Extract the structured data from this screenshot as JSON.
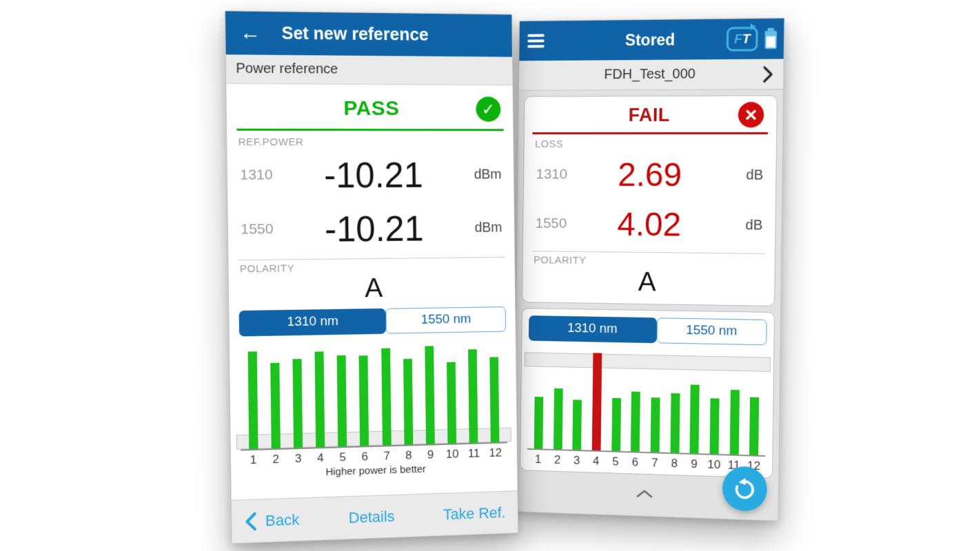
{
  "colors": {
    "header_blue": "#1063a7",
    "accent_light_blue": "#29abe2",
    "pass_green": "#0db10d",
    "bar_green": "#1ec21e",
    "fail_red": "#b20e0e",
    "value_red": "#c30505",
    "bar_red": "#c41212"
  },
  "icons": {
    "back_arrow": "←",
    "check": "✓",
    "fail_cross": "×"
  },
  "left_screen": {
    "header": {
      "title": "Set new reference"
    },
    "subheader": "Power reference",
    "status": "PASS",
    "section_label": "REF.POWER",
    "rows": [
      {
        "wavelength": "1310",
        "value": "-10.21",
        "unit": "dBm"
      },
      {
        "wavelength": "1550",
        "value": "-10.21",
        "unit": "dBm"
      }
    ],
    "polarity_label": "POLARITY",
    "polarity_value": "A",
    "tabs": [
      {
        "label": "1310 nm",
        "active": true
      },
      {
        "label": "1550 nm",
        "active": false
      }
    ],
    "footer": {
      "back": "Back",
      "details": "Details",
      "take_ref": "Take Ref."
    }
  },
  "right_screen": {
    "header": {
      "title": "Stored",
      "logo_f": "F",
      "logo_t": "T"
    },
    "file_name": "FDH_Test_000",
    "status": "FAIL",
    "section_label": "LOSS",
    "rows": [
      {
        "wavelength": "1310",
        "value": "2.69",
        "unit": "dB"
      },
      {
        "wavelength": "1550",
        "value": "4.02",
        "unit": "dB"
      }
    ],
    "polarity_label": "POLARITY",
    "polarity_value": "A",
    "tabs": [
      {
        "label": "1310 nm",
        "active": true
      },
      {
        "label": "1550 nm",
        "active": false
      }
    ]
  },
  "chart_data": [
    {
      "type": "bar",
      "screen": "set-new-reference",
      "title": "",
      "caption": "Higher power is better",
      "categories": [
        "1",
        "2",
        "3",
        "4",
        "5",
        "6",
        "7",
        "8",
        "9",
        "10",
        "11",
        "12"
      ],
      "values": [
        93,
        82,
        85,
        92,
        88,
        87,
        94,
        83,
        95,
        79,
        91,
        83
      ],
      "value_unit": "relative_height_pct",
      "bar_color": "#1ec21e",
      "fail_bars": [],
      "fail_color": "#c41212",
      "threshold_band": "bottom",
      "grid": false,
      "legend": false
    },
    {
      "type": "bar",
      "screen": "stored",
      "title": "",
      "caption": "",
      "categories": [
        "1",
        "2",
        "3",
        "4",
        "5",
        "6",
        "7",
        "8",
        "9",
        "10",
        "11",
        "12"
      ],
      "values": [
        51,
        60,
        49,
        96,
        52,
        59,
        53,
        58,
        67,
        54,
        63,
        56
      ],
      "value_unit": "relative_height_pct",
      "bar_color": "#1ec21e",
      "fail_bars": [
        3
      ],
      "fail_color": "#c41212",
      "threshold_band": "top",
      "grid": false,
      "legend": false
    }
  ]
}
